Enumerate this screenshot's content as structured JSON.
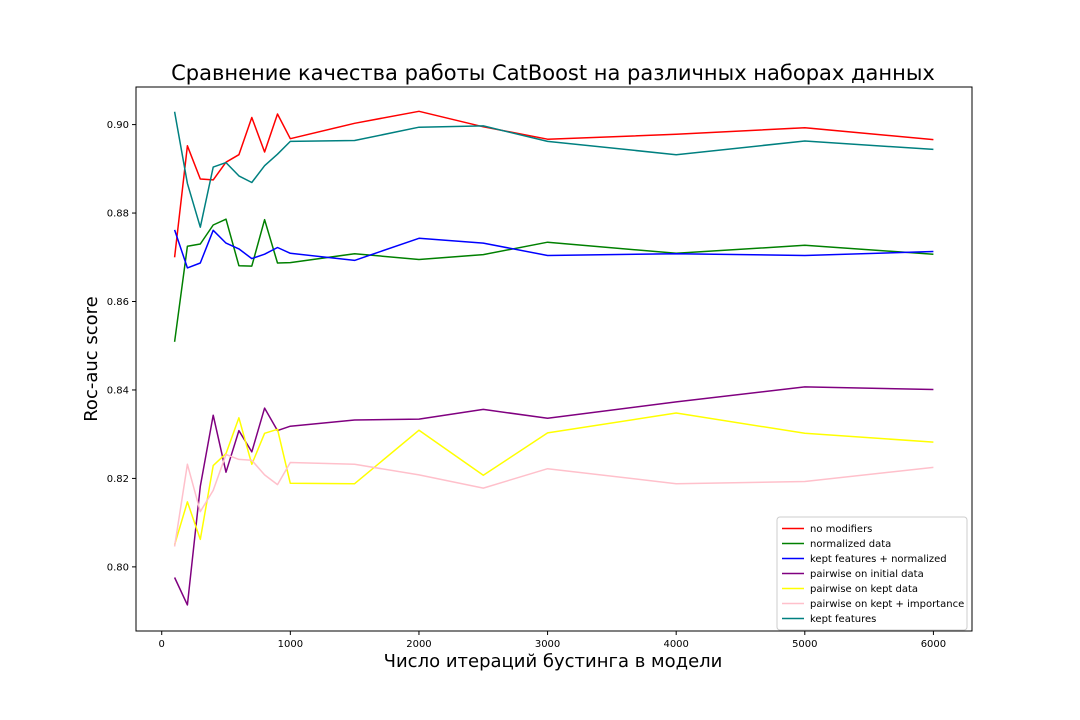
{
  "chart_data": {
    "type": "line",
    "title": "Сравнение качества работы CatBoost на различных наборах данных",
    "xlabel": "Число итераций бустинга в модели",
    "ylabel": "Roc-auc score",
    "xlim": [
      -200,
      6300
    ],
    "ylim": [
      0.7855,
      0.9085
    ],
    "xticks": [
      0,
      1000,
      2000,
      3000,
      4000,
      5000,
      6000
    ],
    "xtick_labels": [
      "0",
      "1000",
      "2000",
      "3000",
      "4000",
      "5000",
      "6000"
    ],
    "yticks": [
      0.8,
      0.82,
      0.84,
      0.86,
      0.88,
      0.9
    ],
    "ytick_labels": [
      "0.80",
      "0.82",
      "0.84",
      "0.86",
      "0.88",
      "0.90"
    ],
    "grid": false,
    "legend_position": "bottom-right",
    "x": [
      100,
      200,
      300,
      400,
      500,
      600,
      700,
      800,
      900,
      1000,
      1500,
      2000,
      2500,
      3000,
      4000,
      5000,
      6000
    ],
    "series": [
      {
        "name": "no modifiers",
        "color": "#ff0000",
        "values": [
          0.87,
          0.8952,
          0.8877,
          0.8875,
          0.8915,
          0.8932,
          0.9016,
          0.8938,
          0.9024,
          0.8968,
          0.9003,
          0.903,
          0.8995,
          0.8967,
          0.8978,
          0.8993,
          0.8966
        ]
      },
      {
        "name": "normalized data",
        "color": "#008000",
        "values": [
          0.8509,
          0.8725,
          0.873,
          0.8773,
          0.8786,
          0.8681,
          0.868,
          0.8785,
          0.8687,
          0.8688,
          0.8708,
          0.8695,
          0.8706,
          0.8734,
          0.8709,
          0.8727,
          0.8707
        ]
      },
      {
        "name": "kept features + normalized",
        "color": "#0000ff",
        "values": [
          0.8762,
          0.8676,
          0.8687,
          0.8761,
          0.8732,
          0.8719,
          0.8697,
          0.8707,
          0.8722,
          0.8709,
          0.8693,
          0.8743,
          0.8732,
          0.8704,
          0.8708,
          0.8704,
          0.8713
        ]
      },
      {
        "name": "pairwise on initial data",
        "color": "#800080",
        "values": [
          0.7976,
          0.7914,
          0.8182,
          0.8343,
          0.8214,
          0.8308,
          0.826,
          0.8359,
          0.8308,
          0.8318,
          0.8332,
          0.8334,
          0.8356,
          0.8336,
          0.8373,
          0.8407,
          0.8401
        ]
      },
      {
        "name": "pairwise on kept data",
        "color": "#ffff00",
        "values": [
          0.805,
          0.8147,
          0.8062,
          0.8229,
          0.8256,
          0.8337,
          0.8232,
          0.8302,
          0.8311,
          0.8189,
          0.8188,
          0.8309,
          0.8207,
          0.8303,
          0.8348,
          0.8302,
          0.8282
        ]
      },
      {
        "name": "pairwise on kept + importance",
        "color": "#ffc0cb",
        "values": [
          0.8046,
          0.8232,
          0.8125,
          0.8173,
          0.8254,
          0.8243,
          0.8241,
          0.8208,
          0.8186,
          0.8236,
          0.8232,
          0.8208,
          0.8178,
          0.8222,
          0.8188,
          0.8193,
          0.8225
        ]
      },
      {
        "name": "kept features",
        "color": "#008080",
        "values": [
          0.9029,
          0.8867,
          0.8768,
          0.8904,
          0.8914,
          0.8884,
          0.8869,
          0.8907,
          0.8933,
          0.8962,
          0.8964,
          0.8994,
          0.8997,
          0.8962,
          0.8932,
          0.8963,
          0.8944
        ]
      }
    ]
  }
}
